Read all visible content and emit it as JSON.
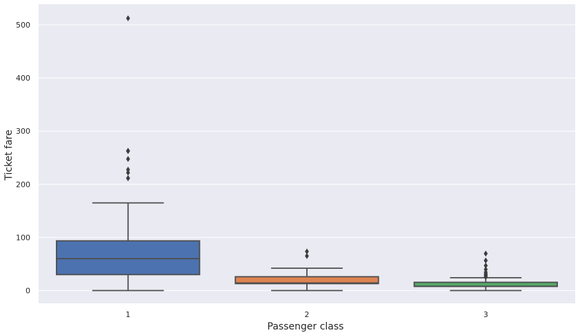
{
  "chart_data": {
    "type": "box",
    "title": "",
    "xlabel": "Passenger class",
    "ylabel": "Ticket fare",
    "ylim": [
      -25,
      540
    ],
    "yticks": [
      0,
      100,
      200,
      300,
      400,
      500
    ],
    "grid": true,
    "categories": [
      "1",
      "2",
      "3"
    ],
    "colors": [
      "#4c72b0",
      "#dd8452",
      "#55a868"
    ],
    "background": "#eaeaf2",
    "boxes": [
      {
        "category": "1",
        "whisker_low": 0,
        "q1": 30,
        "median": 60,
        "q3": 93.5,
        "whisker_high": 164.9,
        "outliers": [
          211.3,
          211.5,
          221.8,
          227.5,
          247.5,
          262.4,
          263,
          512.3
        ]
      },
      {
        "category": "2",
        "whisker_low": 0,
        "q1": 13,
        "median": 14.25,
        "q3": 26,
        "whisker_high": 42,
        "outliers": [
          65,
          73.5
        ]
      },
      {
        "category": "3",
        "whisker_low": 0,
        "q1": 7.75,
        "median": 8.05,
        "q3": 15.5,
        "whisker_high": 24.15,
        "outliers": [
          25.5,
          27.9,
          29.1,
          31.3,
          34.4,
          39.7,
          46.9,
          56.5,
          69.55
        ]
      }
    ]
  }
}
